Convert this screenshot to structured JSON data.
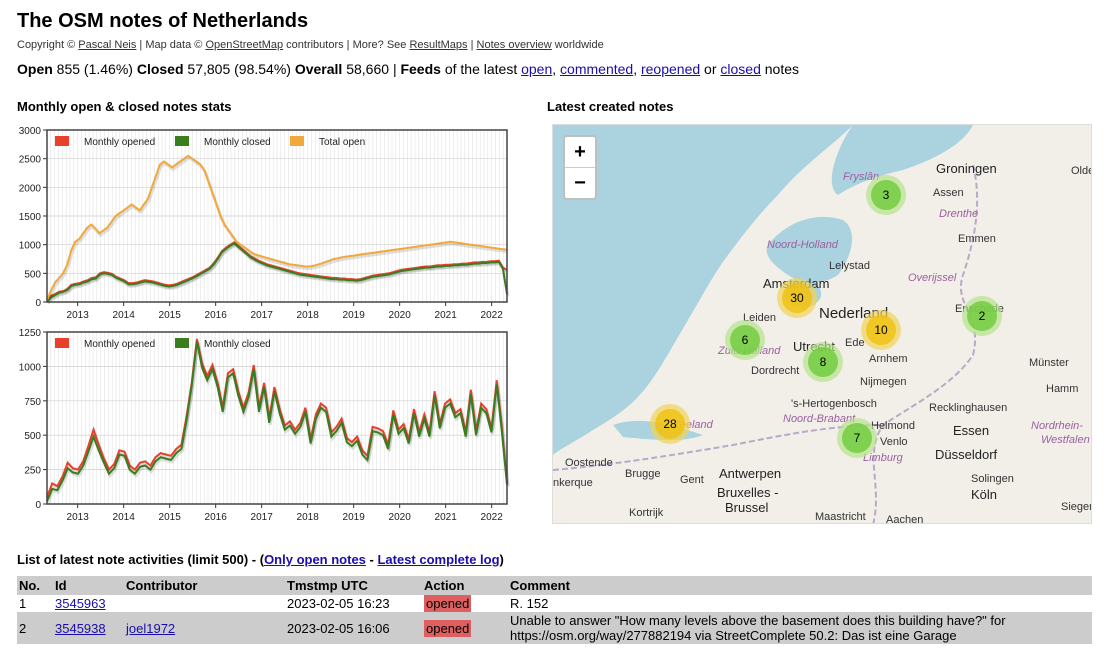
{
  "header": {
    "title": "The OSM notes of Netherlands",
    "copyright_prefix": "Copyright © ",
    "author_link": "Pascal Neis",
    "map_data_prefix": " | Map data © ",
    "osm_link": "OpenStreetMap",
    "contributors_text": " contributors | More? See ",
    "resultmaps_link": "ResultMaps",
    "sep": " | ",
    "notes_overview_link": "Notes overview",
    "worldwide_text": " worldwide"
  },
  "stats": {
    "open_label": "Open",
    "open_value": "855 (1.46%)",
    "closed_label": "Closed",
    "closed_value": "57,805 (98.54%)",
    "overall_label": "Overall",
    "overall_value": "58,660",
    "sep": "|",
    "feeds_label": "Feeds",
    "feeds_text": "of the latest",
    "feed_open": "open",
    "comma1": ",",
    "feed_commented": "commented",
    "comma2": ",",
    "feed_reopened": "reopened",
    "or_text": "or",
    "feed_closed": "closed",
    "notes_text": "notes"
  },
  "sections": {
    "chart_title": "Monthly open & closed notes stats",
    "map_title": "Latest created notes"
  },
  "colors": {
    "opened": "#e8402a",
    "closed": "#3a7d1f",
    "total": "#f0a93a",
    "action_opened": "#dd5f5f"
  },
  "chart_data": [
    {
      "type": "line",
      "years": [
        "2013",
        "2014",
        "2015",
        "2016",
        "2017",
        "2018",
        "2019",
        "2020",
        "2021",
        "2022"
      ],
      "ylim": [
        0,
        3000
      ],
      "yticks": [
        "0",
        "500",
        "1000",
        "1500",
        "2000",
        "2500",
        "3000"
      ],
      "series": [
        {
          "name": "Monthly opened",
          "values": [
            20,
            110,
            140,
            180,
            190,
            230,
            300,
            320,
            330,
            360,
            380,
            420,
            430,
            500,
            520,
            510,
            490,
            440,
            410,
            380,
            330,
            330,
            340,
            360,
            380,
            370,
            360,
            340,
            320,
            300,
            290,
            300,
            320,
            350,
            380,
            410,
            440,
            480,
            520,
            560,
            600,
            680,
            780,
            890,
            950,
            1000,
            1040,
            980,
            920,
            860,
            800,
            760,
            720,
            690,
            660,
            640,
            620,
            600,
            580,
            560,
            540,
            520,
            500,
            490,
            480,
            470,
            460,
            450,
            440,
            430,
            420,
            420,
            410,
            410,
            400,
            400,
            390,
            400,
            420,
            440,
            460,
            470,
            480,
            490,
            500,
            520,
            540,
            560,
            570,
            580,
            590,
            600,
            610,
            620,
            620,
            630,
            640,
            640,
            650,
            650,
            660,
            660,
            670,
            670,
            680,
            690,
            690,
            700,
            700,
            710,
            710,
            720,
            600,
            560
          ]
        },
        {
          "name": "Monthly closed",
          "values": [
            10,
            80,
            120,
            160,
            180,
            210,
            280,
            300,
            310,
            340,
            360,
            400,
            410,
            480,
            500,
            490,
            470,
            420,
            390,
            360,
            310,
            310,
            320,
            340,
            360,
            350,
            340,
            320,
            300,
            280,
            270,
            280,
            300,
            330,
            360,
            390,
            420,
            460,
            500,
            540,
            580,
            660,
            760,
            870,
            930,
            980,
            1020,
            960,
            900,
            840,
            780,
            740,
            700,
            670,
            640,
            620,
            600,
            580,
            560,
            540,
            520,
            500,
            480,
            470,
            460,
            450,
            440,
            430,
            420,
            410,
            400,
            400,
            390,
            390,
            380,
            380,
            370,
            380,
            400,
            420,
            440,
            450,
            460,
            470,
            480,
            500,
            520,
            540,
            550,
            560,
            570,
            580,
            590,
            600,
            600,
            610,
            620,
            620,
            630,
            630,
            640,
            640,
            650,
            650,
            660,
            670,
            670,
            680,
            680,
            690,
            690,
            700,
            580,
            140
          ]
        },
        {
          "name": "Total open",
          "values": [
            30,
            200,
            340,
            420,
            500,
            650,
            900,
            1050,
            1100,
            1200,
            1300,
            1350,
            1280,
            1200,
            1250,
            1300,
            1400,
            1500,
            1550,
            1600,
            1650,
            1700,
            1650,
            1600,
            1700,
            1800,
            2000,
            2200,
            2400,
            2450,
            2400,
            2350,
            2400,
            2450,
            2500,
            2550,
            2500,
            2450,
            2400,
            2300,
            2100,
            1900,
            1700,
            1500,
            1350,
            1250,
            1150,
            1050,
            1000,
            950,
            900,
            850,
            820,
            800,
            780,
            760,
            740,
            720,
            700,
            680,
            660,
            650,
            640,
            630,
            620,
            620,
            630,
            650,
            670,
            700,
            720,
            750,
            760,
            780,
            790,
            800,
            810,
            820,
            830,
            840,
            850,
            860,
            870,
            880,
            890,
            900,
            910,
            920,
            930,
            940,
            950,
            960,
            970,
            980,
            990,
            1000,
            1010,
            1020,
            1030,
            1040,
            1050,
            1040,
            1030,
            1020,
            1010,
            1000,
            990,
            980,
            970,
            960,
            950,
            940,
            930,
            920,
            910
          ]
        }
      ]
    },
    {
      "type": "line",
      "years": [
        "2013",
        "2014",
        "2015",
        "2016",
        "2017",
        "2018",
        "2019",
        "2020",
        "2021",
        "2022"
      ],
      "ylim": [
        0,
        1250
      ],
      "yticks": [
        "0",
        "250",
        "500",
        "750",
        "1000",
        "1250"
      ],
      "series": [
        {
          "name": "Monthly opened",
          "values": [
            50,
            150,
            130,
            200,
            300,
            260,
            250,
            310,
            420,
            540,
            430,
            330,
            250,
            290,
            390,
            380,
            280,
            250,
            300,
            310,
            280,
            340,
            370,
            360,
            350,
            400,
            430,
            640,
            880,
            1200,
            1020,
            930,
            1010,
            880,
            700,
            950,
            980,
            820,
            700,
            810,
            1010,
            700,
            880,
            620,
            850,
            690,
            570,
            600,
            540,
            590,
            700,
            470,
            650,
            730,
            700,
            520,
            560,
            620,
            480,
            450,
            490,
            390,
            350,
            560,
            550,
            530,
            430,
            680,
            540,
            580,
            470,
            690,
            520,
            650,
            520,
            820,
            580,
            730,
            760,
            660,
            690,
            520,
            830,
            530,
            730,
            690,
            550,
            900,
            560,
            150
          ]
        },
        {
          "name": "Monthly closed",
          "values": [
            20,
            110,
            100,
            170,
            260,
            230,
            220,
            280,
            380,
            490,
            390,
            300,
            220,
            260,
            360,
            350,
            250,
            220,
            270,
            280,
            250,
            310,
            340,
            330,
            320,
            370,
            400,
            610,
            860,
            1180,
            990,
            900,
            980,
            850,
            670,
            920,
            950,
            790,
            670,
            780,
            980,
            670,
            850,
            590,
            820,
            660,
            540,
            570,
            510,
            560,
            670,
            440,
            620,
            700,
            670,
            490,
            530,
            590,
            450,
            420,
            460,
            360,
            320,
            530,
            520,
            500,
            400,
            650,
            510,
            550,
            440,
            660,
            490,
            620,
            490,
            790,
            550,
            700,
            730,
            630,
            660,
            490,
            800,
            500,
            700,
            660,
            520,
            870,
            530,
            140
          ]
        }
      ]
    }
  ],
  "map": {
    "zoom_in": "+",
    "zoom_out": "−",
    "clusters": [
      {
        "count": "3",
        "color": "green"
      },
      {
        "count": "30",
        "color": "yellow"
      },
      {
        "count": "10",
        "color": "yellow"
      },
      {
        "count": "2",
        "color": "green"
      },
      {
        "count": "6",
        "color": "green"
      },
      {
        "count": "8",
        "color": "green"
      },
      {
        "count": "28",
        "color": "yellow"
      },
      {
        "count": "7",
        "color": "green"
      }
    ],
    "labels": {
      "groningen": "Groningen",
      "fryslan": "Fryslân",
      "assen": "Assen",
      "drenthe": "Drenthe",
      "emmen": "Emmen",
      "noord_holland": "Noord-Holland",
      "lelystad": "Lelystad",
      "overijssel": "Overijssel",
      "amsterdam": "Amsterdam",
      "nederland": "Nederland",
      "enschede": "Enschede",
      "leiden": "Leiden",
      "utrecht": "Utrecht",
      "ede": "Ede",
      "zuid_holland": "Zuid-Holland",
      "arnhem": "Arnhem",
      "dordrecht": "Dordrecht",
      "nijmegen": "Nijmegen",
      "hertogenbosch": "'s-Hertogenbosch",
      "noord_brabant": "Noord-Brabant",
      "zeeland": "Zeeland",
      "helmond": "Helmond",
      "venlo": "Venlo",
      "limburg": "Limburg",
      "oostende": "Oostende",
      "brugge": "Brugge",
      "gent": "Gent",
      "antwerpen": "Antwerpen",
      "bruxelles": "Bruxelles -",
      "brussel": "Brussel",
      "kortrijk": "Kortrijk",
      "maastricht": "Maastricht",
      "aachen": "Aachen",
      "essen": "Essen",
      "recklinghausen": "Recklinghausen",
      "dusseldorf": "Düsseldorf",
      "solingen": "Solingen",
      "koln": "Köln",
      "siegen": "Siegen",
      "hamm": "Hamm",
      "munster": "Münster",
      "nordrhein": "Nordrhein-",
      "westfalen": "Westfalen",
      "olde": "Olde",
      "dunkerque": "nkerque"
    }
  },
  "activity": {
    "title": "List of latest note activities (limit 500) - (",
    "only_open_link": "Only open notes",
    "dash": " - ",
    "complete_log_link": "Latest complete log",
    "close_paren": ")",
    "columns": [
      "No.",
      "Id",
      "Contributor",
      "Tmstmp UTC",
      "Action",
      "Comment"
    ],
    "rows": [
      {
        "no": "1",
        "id": "3545963",
        "contributor": "",
        "timestamp": "2023-02-05 16:23",
        "action": "opened",
        "comment": "R. 152"
      },
      {
        "no": "2",
        "id": "3545938",
        "contributor": "joel1972",
        "timestamp": "2023-02-05 16:06",
        "action": "opened",
        "comment": "Unable to answer \"How many levels above the basement does this building have?\" for https://osm.org/way/277882194 via StreetComplete 50.2: Das ist eine Garage"
      }
    ]
  }
}
